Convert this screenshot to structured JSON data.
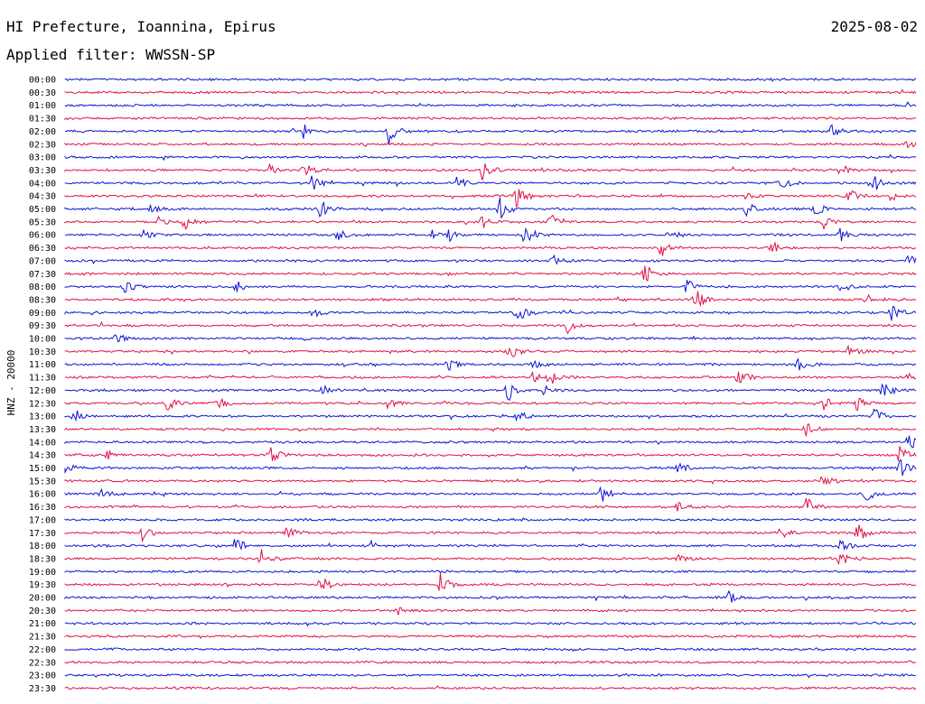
{
  "header": {
    "title": "HI Prefecture, Ioannina, Epirus",
    "date": "2025-08-02",
    "filter": "Applied filter: WWSSN-SP"
  },
  "colors": {
    "blue": "#0a14d8",
    "red": "#e01046"
  },
  "chart_data": {
    "type": "line",
    "title": "HI Prefecture, Ioannina, Epirus",
    "ylabel": "HNZ - 20000",
    "row_labels": [
      "00:00",
      "00:30",
      "01:00",
      "01:30",
      "02:00",
      "02:30",
      "03:00",
      "03:30",
      "04:00",
      "04:30",
      "05:00",
      "05:30",
      "06:00",
      "06:30",
      "07:00",
      "07:30",
      "08:00",
      "08:30",
      "09:00",
      "09:30",
      "10:00",
      "10:30",
      "11:00",
      "11:30",
      "12:00",
      "12:30",
      "13:00",
      "13:30",
      "14:00",
      "14:30",
      "15:00",
      "15:30",
      "16:00",
      "16:30",
      "17:00",
      "17:30",
      "18:00",
      "18:30",
      "19:00",
      "19:30",
      "20:00",
      "20:30",
      "21:00",
      "21:30",
      "22:00",
      "22:30",
      "23:00",
      "23:30"
    ],
    "line_color_cycle": [
      "blue",
      "red"
    ],
    "events": [
      {
        "row": "02:00",
        "x": 0.28,
        "amp": 1.0
      },
      {
        "row": "02:00",
        "x": 0.38,
        "amp": 1.8
      },
      {
        "row": "02:00",
        "x": 0.9,
        "amp": 1.0
      },
      {
        "row": "02:30",
        "x": 0.99,
        "amp": 0.6
      },
      {
        "row": "03:30",
        "x": 0.24,
        "amp": 0.8
      },
      {
        "row": "03:30",
        "x": 0.28,
        "amp": 1.2
      },
      {
        "row": "03:30",
        "x": 0.49,
        "amp": 1.5
      },
      {
        "row": "03:30",
        "x": 0.91,
        "amp": 1.0
      },
      {
        "row": "04:00",
        "x": 0.29,
        "amp": 1.3
      },
      {
        "row": "04:00",
        "x": 0.46,
        "amp": 1.0
      },
      {
        "row": "04:00",
        "x": 0.84,
        "amp": 1.0
      },
      {
        "row": "04:00",
        "x": 0.95,
        "amp": 1.3
      },
      {
        "row": "04:30",
        "x": 0.53,
        "amp": 1.5
      },
      {
        "row": "04:30",
        "x": 0.8,
        "amp": 0.5
      },
      {
        "row": "04:30",
        "x": 0.92,
        "amp": 1.0
      },
      {
        "row": "04:30",
        "x": 0.97,
        "amp": 0.7
      },
      {
        "row": "05:00",
        "x": 0.1,
        "amp": 1.0
      },
      {
        "row": "05:00",
        "x": 0.3,
        "amp": 1.2
      },
      {
        "row": "05:00",
        "x": 0.51,
        "amp": 1.6
      },
      {
        "row": "05:00",
        "x": 0.8,
        "amp": 1.0
      },
      {
        "row": "05:00",
        "x": 0.88,
        "amp": 1.0
      },
      {
        "row": "05:30",
        "x": 0.11,
        "amp": 0.7
      },
      {
        "row": "05:30",
        "x": 0.14,
        "amp": 1.2
      },
      {
        "row": "05:30",
        "x": 0.49,
        "amp": 1.0
      },
      {
        "row": "05:30",
        "x": 0.57,
        "amp": 1.1
      },
      {
        "row": "05:30",
        "x": 0.89,
        "amp": 1.0
      },
      {
        "row": "06:00",
        "x": 0.09,
        "amp": 1.0
      },
      {
        "row": "06:00",
        "x": 0.32,
        "amp": 1.0
      },
      {
        "row": "06:00",
        "x": 0.43,
        "amp": 1.0
      },
      {
        "row": "06:00",
        "x": 0.45,
        "amp": 1.0
      },
      {
        "row": "06:00",
        "x": 0.54,
        "amp": 1.7
      },
      {
        "row": "06:00",
        "x": 0.71,
        "amp": 0.6
      },
      {
        "row": "06:00",
        "x": 0.91,
        "amp": 1.0
      },
      {
        "row": "06:30",
        "x": 0.7,
        "amp": 1.5
      },
      {
        "row": "06:30",
        "x": 0.83,
        "amp": 1.0
      },
      {
        "row": "07:00",
        "x": 0.57,
        "amp": 1.1
      },
      {
        "row": "07:00",
        "x": 0.99,
        "amp": 0.8
      },
      {
        "row": "07:30",
        "x": 0.68,
        "amp": 1.6
      },
      {
        "row": "08:00",
        "x": 0.07,
        "amp": 0.9
      },
      {
        "row": "08:00",
        "x": 0.2,
        "amp": 0.9
      },
      {
        "row": "08:00",
        "x": 0.73,
        "amp": 1.0
      },
      {
        "row": "08:00",
        "x": 0.91,
        "amp": 0.8
      },
      {
        "row": "08:30",
        "x": 0.74,
        "amp": 1.7
      },
      {
        "row": "08:30",
        "x": 0.94,
        "amp": 0.8
      },
      {
        "row": "09:00",
        "x": 0.29,
        "amp": 0.8
      },
      {
        "row": "09:00",
        "x": 0.53,
        "amp": 1.7
      },
      {
        "row": "09:00",
        "x": 0.97,
        "amp": 1.2
      },
      {
        "row": "09:30",
        "x": 0.59,
        "amp": 1.0
      },
      {
        "row": "10:00",
        "x": 0.06,
        "amp": 0.8
      },
      {
        "row": "10:30",
        "x": 0.52,
        "amp": 1.6
      },
      {
        "row": "10:30",
        "x": 0.92,
        "amp": 1.0
      },
      {
        "row": "11:00",
        "x": 0.45,
        "amp": 1.0
      },
      {
        "row": "11:00",
        "x": 0.55,
        "amp": 0.8
      },
      {
        "row": "11:00",
        "x": 0.86,
        "amp": 1.0
      },
      {
        "row": "11:30",
        "x": 0.55,
        "amp": 1.0
      },
      {
        "row": "11:30",
        "x": 0.57,
        "amp": 1.0
      },
      {
        "row": "11:30",
        "x": 0.79,
        "amp": 1.4
      },
      {
        "row": "11:30",
        "x": 0.99,
        "amp": 0.6
      },
      {
        "row": "12:00",
        "x": 0.3,
        "amp": 1.0
      },
      {
        "row": "12:00",
        "x": 0.52,
        "amp": 1.8
      },
      {
        "row": "12:00",
        "x": 0.56,
        "amp": 0.8
      },
      {
        "row": "12:00",
        "x": 0.96,
        "amp": 1.2
      },
      {
        "row": "12:30",
        "x": 0.12,
        "amp": 1.0
      },
      {
        "row": "12:30",
        "x": 0.18,
        "amp": 0.9
      },
      {
        "row": "12:30",
        "x": 0.38,
        "amp": 1.0
      },
      {
        "row": "12:30",
        "x": 0.89,
        "amp": 1.0
      },
      {
        "row": "12:30",
        "x": 0.93,
        "amp": 1.2
      },
      {
        "row": "13:00",
        "x": 0.01,
        "amp": 0.9
      },
      {
        "row": "13:00",
        "x": 0.53,
        "amp": 0.9
      },
      {
        "row": "13:00",
        "x": 0.95,
        "amp": 1.4
      },
      {
        "row": "13:30",
        "x": 0.87,
        "amp": 1.4
      },
      {
        "row": "14:00",
        "x": 0.99,
        "amp": 1.4
      },
      {
        "row": "14:30",
        "x": 0.05,
        "amp": 0.7
      },
      {
        "row": "14:30",
        "x": 0.24,
        "amp": 1.3
      },
      {
        "row": "14:30",
        "x": 0.98,
        "amp": 1.5
      },
      {
        "row": "15:00",
        "x": 0.0,
        "amp": 0.8
      },
      {
        "row": "15:00",
        "x": 0.72,
        "amp": 0.9
      },
      {
        "row": "15:00",
        "x": 0.98,
        "amp": 1.5
      },
      {
        "row": "15:30",
        "x": 0.89,
        "amp": 1.2
      },
      {
        "row": "16:00",
        "x": 0.04,
        "amp": 0.8
      },
      {
        "row": "16:00",
        "x": 0.63,
        "amp": 1.3
      },
      {
        "row": "16:00",
        "x": 0.94,
        "amp": 1.2
      },
      {
        "row": "16:30",
        "x": 0.72,
        "amp": 0.8
      },
      {
        "row": "16:30",
        "x": 0.87,
        "amp": 1.4
      },
      {
        "row": "17:30",
        "x": 0.09,
        "amp": 1.2
      },
      {
        "row": "17:30",
        "x": 0.26,
        "amp": 1.0
      },
      {
        "row": "17:30",
        "x": 0.84,
        "amp": 0.9
      },
      {
        "row": "17:30",
        "x": 0.93,
        "amp": 1.5
      },
      {
        "row": "18:00",
        "x": 0.2,
        "amp": 1.3
      },
      {
        "row": "18:00",
        "x": 0.36,
        "amp": 0.7
      },
      {
        "row": "18:00",
        "x": 0.91,
        "amp": 1.0
      },
      {
        "row": "18:30",
        "x": 0.23,
        "amp": 1.4
      },
      {
        "row": "18:30",
        "x": 0.72,
        "amp": 0.6
      },
      {
        "row": "18:30",
        "x": 0.91,
        "amp": 1.5
      },
      {
        "row": "19:30",
        "x": 0.3,
        "amp": 1.4
      },
      {
        "row": "19:30",
        "x": 0.44,
        "amp": 1.6
      },
      {
        "row": "20:00",
        "x": 0.78,
        "amp": 1.0
      },
      {
        "row": "20:30",
        "x": 0.39,
        "amp": 0.7
      }
    ]
  }
}
